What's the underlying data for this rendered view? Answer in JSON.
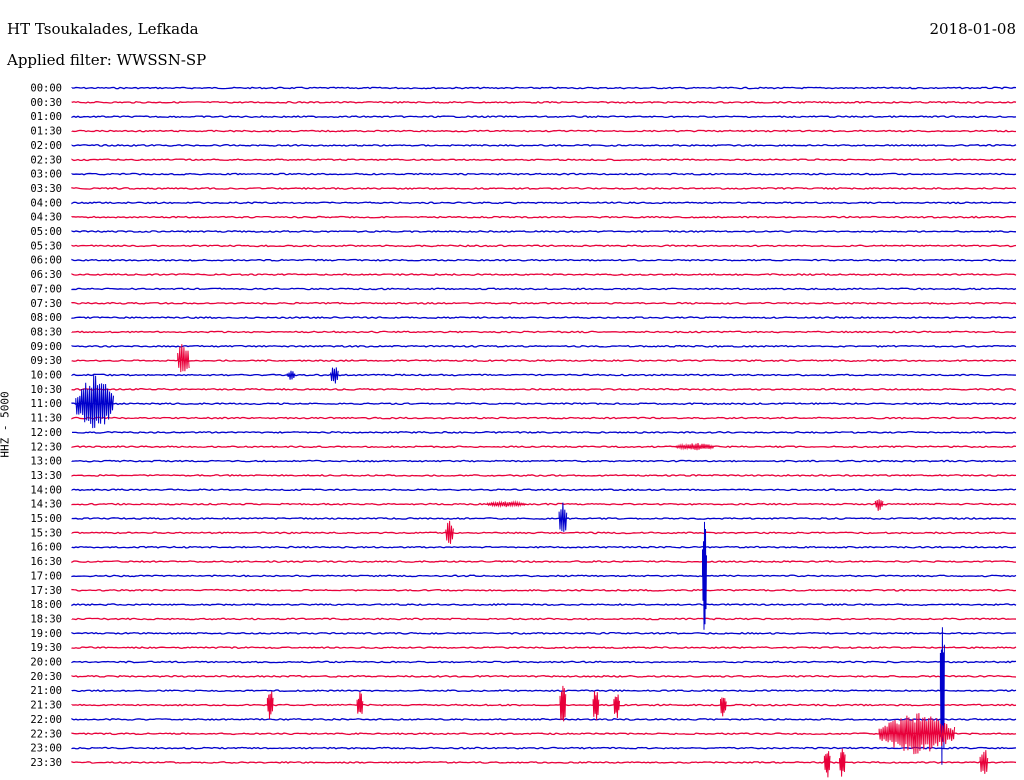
{
  "header": {
    "station": "HT Tsoukalades, Lefkada",
    "date": "2018-01-08",
    "filter": "Applied filter: WWSSN-SP",
    "channel": "HHZ - 5000"
  },
  "colors": {
    "even": "#0000cc",
    "odd": "#e8003a"
  },
  "chart_data": {
    "type": "line",
    "title": "HT Tsoukalades, Lefkada",
    "subtitle": "Applied filter: WWSSN-SP",
    "ylabel": "HHZ - 5000",
    "rows": [
      "00:00",
      "00:30",
      "01:00",
      "01:30",
      "02:00",
      "02:30",
      "03:00",
      "03:30",
      "04:00",
      "04:30",
      "05:00",
      "05:30",
      "06:00",
      "06:30",
      "07:00",
      "07:30",
      "08:00",
      "08:30",
      "09:00",
      "09:30",
      "10:00",
      "10:30",
      "11:00",
      "11:30",
      "12:00",
      "12:30",
      "13:00",
      "13:30",
      "14:00",
      "14:30",
      "15:00",
      "15:30",
      "16:00",
      "16:30",
      "17:00",
      "17:30",
      "18:00",
      "18:30",
      "19:00",
      "19:30",
      "20:00",
      "20:30",
      "21:00",
      "21:30",
      "22:00",
      "22:30",
      "23:00",
      "23:30"
    ],
    "events": [
      {
        "row": 19,
        "pos": 0.118,
        "amp": 20,
        "dur": 0.006
      },
      {
        "row": 20,
        "pos": 0.232,
        "amp": 5,
        "dur": 0.004
      },
      {
        "row": 20,
        "pos": 0.278,
        "amp": 10,
        "dur": 0.004
      },
      {
        "row": 22,
        "pos": 0.024,
        "amp": 30,
        "dur": 0.02
      },
      {
        "row": 25,
        "pos": 0.66,
        "amp": 4,
        "dur": 0.02
      },
      {
        "row": 29,
        "pos": 0.46,
        "amp": 3,
        "dur": 0.02
      },
      {
        "row": 30,
        "pos": 0.52,
        "amp": 18,
        "dur": 0.004
      },
      {
        "row": 31,
        "pos": 0.4,
        "amp": 12,
        "dur": 0.004
      },
      {
        "row": 29,
        "pos": 0.855,
        "amp": 8,
        "dur": 0.004
      },
      {
        "row": 34,
        "pos": 0.67,
        "amp": 65,
        "dur": 0.002
      },
      {
        "row": 42,
        "pos": 0.922,
        "amp": 80,
        "dur": 0.002
      },
      {
        "row": 43,
        "pos": 0.21,
        "amp": 18,
        "dur": 0.003
      },
      {
        "row": 43,
        "pos": 0.305,
        "amp": 14,
        "dur": 0.003
      },
      {
        "row": 43,
        "pos": 0.52,
        "amp": 22,
        "dur": 0.003
      },
      {
        "row": 43,
        "pos": 0.555,
        "amp": 18,
        "dur": 0.003
      },
      {
        "row": 43,
        "pos": 0.577,
        "amp": 14,
        "dur": 0.003
      },
      {
        "row": 43,
        "pos": 0.69,
        "amp": 12,
        "dur": 0.003
      },
      {
        "row": 45,
        "pos": 0.895,
        "amp": 22,
        "dur": 0.04
      },
      {
        "row": 47,
        "pos": 0.8,
        "amp": 16,
        "dur": 0.003
      },
      {
        "row": 47,
        "pos": 0.816,
        "amp": 16,
        "dur": 0.003
      },
      {
        "row": 47,
        "pos": 0.966,
        "amp": 16,
        "dur": 0.004
      }
    ]
  }
}
